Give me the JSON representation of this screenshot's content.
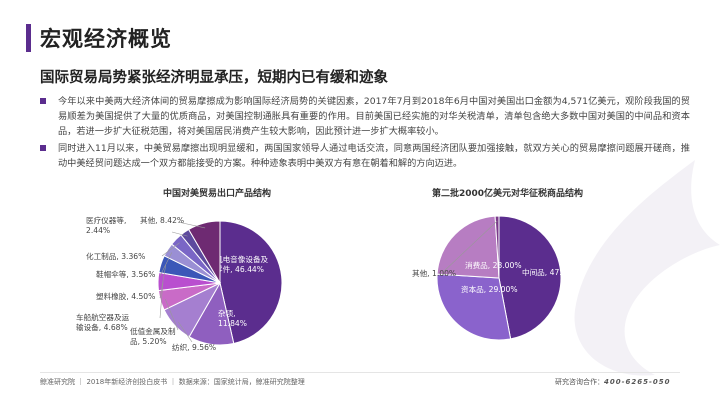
{
  "header": {
    "title": "宏观经济概览",
    "subtitle": "国际贸易局势紧张经济明显承压，短期内已有缓和迹象"
  },
  "bullets": [
    "今年以来中美两大经济体间的贸易摩擦成为影响国际经济局势的关键因素，2017年7月到2018年6月中国对美国出口金额为4,571亿美元，观阶段我国的贸易顺差为美国提供了大量的优质商品，对美国控制通胀具有重要的作用。目前美国已经实施的对华关税清单，清单包含绝大多数中国对美国的中间品和资本品，若进一步扩大征税范围，将对美国居民消费产生较大影响，因此预计进一步扩大概率较小。",
    "同时进入11月以来，中美贸易摩擦出现明显缓和，两国国家领导人通过电话交流，同意两国经济团队要加强接触，就双方关心的贸易摩擦问题展开磋商，推动中美经贸问题达成一个双方都能接受的方案。种种迹象表明中美双方有意在朝着和解的方向迈进。"
  ],
  "chart_data": [
    {
      "type": "pie",
      "title": "中国对美贸易出口产品结构",
      "categories": [
        "机电音像设备及零件",
        "杂项",
        "纺织",
        "低值金属及制品",
        "车船航空器及运输设备",
        "塑料橡胶",
        "鞋帽伞等",
        "化工制品",
        "医疗仪器等",
        "其他"
      ],
      "values": [
        46.44,
        11.84,
        9.56,
        5.2,
        4.68,
        4.5,
        3.56,
        3.36,
        2.44,
        8.42
      ],
      "labels": [
        "机电音像设备及零件, 46.44%",
        "杂项, 11.84%",
        "纺织, 9.56%",
        "低值金属及制品, 5.20%",
        "车船航空器及运输设备, 4.68%",
        "塑料橡胶, 4.50%",
        "鞋帽伞等, 3.56%",
        "化工制品, 3.36%",
        "医疗仪器等, 2.44%",
        "其他, 8.42%"
      ],
      "colors": [
        "#5b2d8e",
        "#8f5fbf",
        "#a57fd0",
        "#c96bc7",
        "#b94fcf",
        "#3b57b8",
        "#9a8fd4",
        "#7a66c6",
        "#5d4a9e",
        "#6e2a72"
      ]
    },
    {
      "type": "pie",
      "title": "第二批2000亿美元对华征税商品结构",
      "categories": [
        "中间品",
        "资本品",
        "消费品",
        "其他"
      ],
      "values": [
        47.0,
        29.0,
        23.0,
        1.0
      ],
      "labels": [
        "中间品, 47.00%",
        "资本品, 29.00%",
        "消费品, 23.00%",
        "其他, 1.00%"
      ],
      "colors": [
        "#5b2d8e",
        "#8a63cc",
        "#b77dc2",
        "#7a3a8a"
      ]
    }
  ],
  "footer": {
    "left": "鲸准研究院 ｜ 2018年新经济创投白皮书 ｜ 数据来源：国家统计局，鲸准研究院整理",
    "right_label": "研究咨询合作：",
    "right_phone": "400-6265-050"
  }
}
